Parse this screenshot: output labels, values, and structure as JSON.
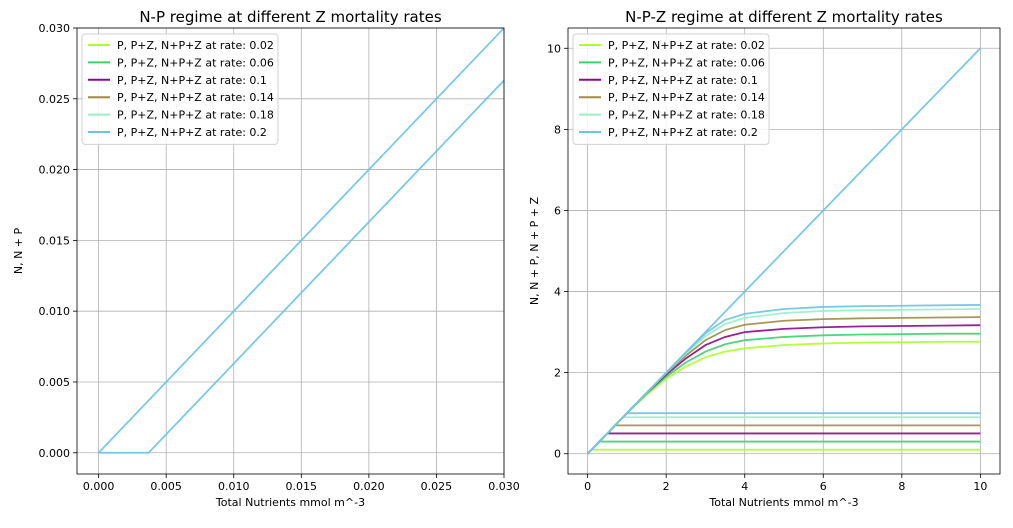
{
  "chart_data": [
    {
      "type": "line",
      "title": "N-P regime at different Z mortality rates",
      "xlabel": "Total Nutrients mmol m^-3",
      "ylabel": "N, N + P",
      "xlim": [
        -0.0016,
        0.03
      ],
      "ylim": [
        -0.0015,
        0.03
      ],
      "xticks": [
        "0.000",
        "0.005",
        "0.010",
        "0.015",
        "0.020",
        "0.025",
        "0.030"
      ],
      "yticks": [
        "0.000",
        "0.005",
        "0.010",
        "0.015",
        "0.020",
        "0.025",
        "0.030"
      ],
      "grid": true,
      "legend_position": "upper-left",
      "legend": [
        {
          "label": "P, P+Z, N+P+Z at rate: 0.02",
          "color": "#adff2f"
        },
        {
          "label": "P, P+Z, N+P+Z at rate: 0.06",
          "color": "#3cd270"
        },
        {
          "label": "P, P+Z, N+P+Z at rate: 0.1",
          "color": "#8b0a8b"
        },
        {
          "label": "P, P+Z, N+P+Z at rate: 0.14",
          "color": "#a08c46"
        },
        {
          "label": "P, P+Z, N+P+Z at rate: 0.18",
          "color": "#96f0c8"
        },
        {
          "label": "P, P+Z, N+P+Z at rate: 0.2",
          "color": "#6cc3e6"
        }
      ],
      "series": [
        {
          "color": "#6cc3e6",
          "x": [
            0,
            0.03
          ],
          "y": [
            0,
            0.03
          ]
        },
        {
          "color": "#6cc3e6",
          "x": [
            0,
            0.0037,
            0.03
          ],
          "y": [
            0,
            0,
            0.0263
          ]
        }
      ]
    },
    {
      "type": "line",
      "title": "N-P-Z regime at different Z mortality rates",
      "xlabel": "Total Nutrients mmol m^-3",
      "ylabel": "N, N + P, N + P + Z",
      "xlim": [
        -0.5,
        10.5
      ],
      "ylim": [
        -0.5,
        10.5
      ],
      "xticks": [
        "0",
        "2",
        "4",
        "6",
        "8",
        "10"
      ],
      "yticks": [
        "0",
        "2",
        "4",
        "6",
        "8",
        "10"
      ],
      "grid": true,
      "legend_position": "upper-left",
      "legend": [
        {
          "label": "P, P+Z, N+P+Z at rate: 0.02",
          "color": "#adff2f"
        },
        {
          "label": "P, P+Z, N+P+Z at rate: 0.06",
          "color": "#3cd270"
        },
        {
          "label": "P, P+Z, N+P+Z at rate: 0.1",
          "color": "#8b0a8b"
        },
        {
          "label": "P, P+Z, N+P+Z at rate: 0.14",
          "color": "#a08c46"
        },
        {
          "label": "P, P+Z, N+P+Z at rate: 0.18",
          "color": "#96f0c8"
        },
        {
          "label": "P, P+Z, N+P+Z at rate: 0.2",
          "color": "#6cc3e6"
        }
      ],
      "series": [
        {
          "color": "#6cc3e6",
          "x": [
            0,
            10
          ],
          "y": [
            0,
            10
          ]
        },
        {
          "color": "#adff2f",
          "x": [
            0,
            0.1,
            10
          ],
          "y": [
            0,
            0.1,
            0.1
          ]
        },
        {
          "color": "#3cd270",
          "x": [
            0,
            0.3,
            10
          ],
          "y": [
            0,
            0.3,
            0.3
          ]
        },
        {
          "color": "#8b0a8b",
          "x": [
            0,
            0.5,
            10
          ],
          "y": [
            0,
            0.5,
            0.5
          ]
        },
        {
          "color": "#a08c46",
          "x": [
            0,
            0.7,
            10
          ],
          "y": [
            0,
            0.7,
            0.7
          ]
        },
        {
          "color": "#96f0c8",
          "x": [
            0,
            0.9,
            10
          ],
          "y": [
            0,
            0.9,
            0.9
          ]
        },
        {
          "color": "#6cc3e6",
          "x": [
            0,
            1.0,
            10
          ],
          "y": [
            0,
            1.0,
            1.0
          ]
        },
        {
          "color": "#adff2f",
          "x": [
            0,
            0.5,
            1,
            1.5,
            2,
            2.5,
            3,
            3.5,
            4,
            5,
            6,
            7,
            8,
            9,
            10
          ],
          "y": [
            0,
            0.5,
            1.0,
            1.45,
            1.85,
            2.15,
            2.38,
            2.52,
            2.6,
            2.68,
            2.72,
            2.74,
            2.75,
            2.76,
            2.76
          ]
        },
        {
          "color": "#3cd270",
          "x": [
            0,
            0.5,
            1,
            1.5,
            2,
            2.5,
            3,
            3.5,
            4,
            5,
            6,
            7,
            8,
            9,
            10
          ],
          "y": [
            0,
            0.5,
            1.0,
            1.48,
            1.9,
            2.25,
            2.52,
            2.7,
            2.8,
            2.88,
            2.92,
            2.94,
            2.95,
            2.96,
            2.96
          ]
        },
        {
          "color": "#8b0a8b",
          "x": [
            0,
            0.5,
            1,
            1.5,
            2,
            2.5,
            3,
            3.5,
            4,
            5,
            6,
            7,
            8,
            9,
            10
          ],
          "y": [
            0,
            0.5,
            1.0,
            1.5,
            1.95,
            2.35,
            2.68,
            2.88,
            3.0,
            3.08,
            3.12,
            3.14,
            3.15,
            3.16,
            3.17
          ]
        },
        {
          "color": "#a08c46",
          "x": [
            0,
            0.5,
            1,
            1.5,
            2,
            2.5,
            3,
            3.5,
            4,
            5,
            6,
            7,
            8,
            9,
            10
          ],
          "y": [
            0,
            0.5,
            1.0,
            1.5,
            1.98,
            2.42,
            2.8,
            3.05,
            3.18,
            3.28,
            3.32,
            3.34,
            3.35,
            3.36,
            3.37
          ]
        },
        {
          "color": "#96f0c8",
          "x": [
            0,
            0.5,
            1,
            1.5,
            2,
            2.5,
            3,
            3.5,
            4,
            5,
            6,
            7,
            8,
            9,
            10
          ],
          "y": [
            0,
            0.5,
            1.0,
            1.5,
            2.0,
            2.47,
            2.9,
            3.2,
            3.35,
            3.47,
            3.52,
            3.54,
            3.55,
            3.56,
            3.57
          ]
        },
        {
          "color": "#6cc3e6",
          "x": [
            0,
            0.5,
            1,
            1.5,
            2,
            2.5,
            3,
            3.5,
            4,
            5,
            6,
            7,
            8,
            9,
            10
          ],
          "y": [
            0,
            0.5,
            1.0,
            1.5,
            2.0,
            2.5,
            2.97,
            3.3,
            3.45,
            3.57,
            3.62,
            3.64,
            3.65,
            3.66,
            3.67
          ]
        }
      ]
    }
  ]
}
